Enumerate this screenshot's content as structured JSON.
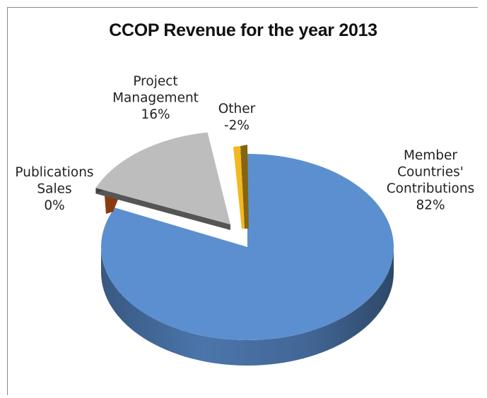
{
  "chart_data": {
    "type": "pie",
    "style": "3d-exploded",
    "title": "CCOP Revenue for the year 2013",
    "slices": [
      {
        "label_lines": [
          "Member",
          "Countries'",
          "Contributions"
        ],
        "percent_label": "82%",
        "value": 82,
        "color": "#5b8fd0"
      },
      {
        "label_lines": [
          "Other"
        ],
        "percent_label": "-2%",
        "value": -2,
        "color": "#f4b81f"
      },
      {
        "label_lines": [
          "Project",
          "Management"
        ],
        "percent_label": "16%",
        "value": 16,
        "color": "#bdbdbd"
      },
      {
        "label_lines": [
          "Publications",
          "Sales"
        ],
        "percent_label": "0%",
        "value": 0,
        "color": "#8b3a10"
      }
    ],
    "legend": "none",
    "data_labels": "outside"
  }
}
